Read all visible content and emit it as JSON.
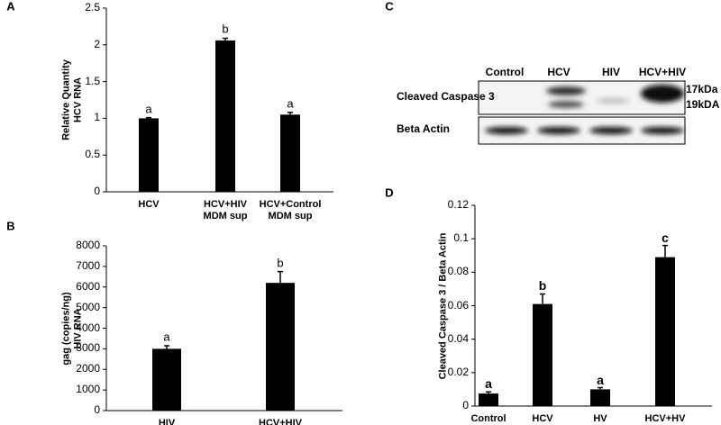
{
  "chart_data": [
    {
      "type": "bar",
      "panel": "A",
      "ylabel": "Relative Quantity\nHCV RNA",
      "categories": [
        "HCV",
        "HCV+HIV\nMDM sup",
        "HCV+Control\nMDM sup"
      ],
      "values": [
        1.0,
        2.06,
        1.05
      ],
      "errors": [
        0.01,
        0.03,
        0.03
      ],
      "annotations": [
        "a",
        "b",
        "a"
      ],
      "color": "#000000",
      "ylim": [
        0,
        2.5
      ],
      "yticks": [
        0,
        0.5,
        1,
        1.5,
        2,
        2.5
      ]
    },
    {
      "type": "bar",
      "panel": "B",
      "ylabel": "gag (copies/ng)\nHIV RNA",
      "categories": [
        "HIV",
        "HCV+HIV"
      ],
      "values": [
        3000,
        6200
      ],
      "errors": [
        150,
        550
      ],
      "annotations": [
        "a",
        "b"
      ],
      "color": "#000000",
      "ylim": [
        0,
        8000
      ],
      "yticks": [
        0,
        1000,
        2000,
        3000,
        4000,
        5000,
        6000,
        7000,
        8000
      ]
    },
    {
      "type": "bar",
      "panel": "D",
      "ylabel": "Cleaved Caspase 3 / Beta Actin",
      "categories": [
        "Control",
        "HCV",
        "HV",
        "HCV+HV"
      ],
      "values": [
        0.0075,
        0.061,
        0.01,
        0.089
      ],
      "errors": [
        0.001,
        0.006,
        0.001,
        0.007
      ],
      "annotations": [
        "a",
        "b",
        "a",
        "c"
      ],
      "color": "#000000",
      "ylim": [
        0,
        0.12
      ],
      "yticks": [
        0,
        0.02,
        0.04,
        0.06,
        0.08,
        0.1,
        0.12
      ]
    }
  ],
  "blot": {
    "panel": "C",
    "lanes": [
      "Control",
      "HCV",
      "HIV",
      "HCV+HIV"
    ],
    "rows": [
      "Cleaved Caspase 3",
      "Beta Actin"
    ],
    "sizes": [
      "17kDa",
      "19kDA"
    ]
  }
}
